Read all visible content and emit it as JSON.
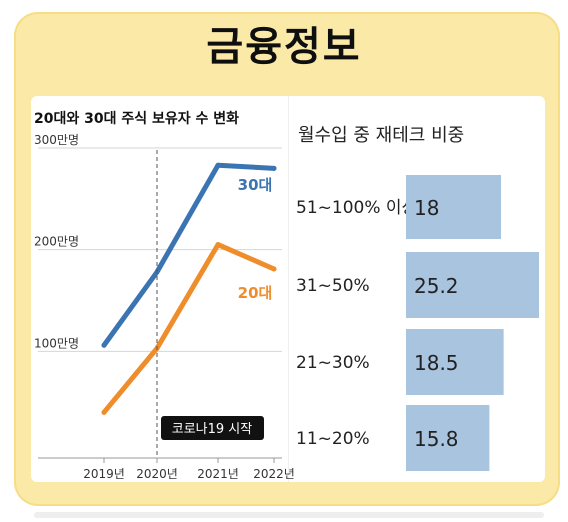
{
  "header": {
    "title": "금융정보"
  },
  "chart_data": [
    {
      "type": "line",
      "title": "20대와 30대 주식 보유자 수 변화",
      "x": [
        "2019년",
        "2020년",
        "2021년",
        "2022년"
      ],
      "y_ticks": [
        {
          "value": 100,
          "label": "100만명"
        },
        {
          "value": 200,
          "label": "200만명"
        },
        {
          "value": 300,
          "label": "300만명"
        }
      ],
      "ylim": [
        0,
        300
      ],
      "series": [
        {
          "name": "30대",
          "values": [
            106,
            178,
            283,
            280
          ],
          "color": "#3b74b2"
        },
        {
          "name": "20대",
          "values": [
            40,
            103,
            205,
            181
          ],
          "color": "#ef8d2b"
        }
      ],
      "annotation": {
        "label": "코로나19 시작",
        "x": "2020년"
      },
      "grid": "horizontal",
      "legend": "inline-labels"
    },
    {
      "type": "bar",
      "orientation": "horizontal",
      "title": "월수입 중 재테크 비중",
      "categories": [
        "51~100% 이상",
        "31~50%",
        "21~30%",
        "11~20%"
      ],
      "values": [
        18,
        25.2,
        18.5,
        15.8
      ],
      "bar_color": "#a8c4de",
      "xlim": [
        0,
        25.2
      ]
    }
  ]
}
